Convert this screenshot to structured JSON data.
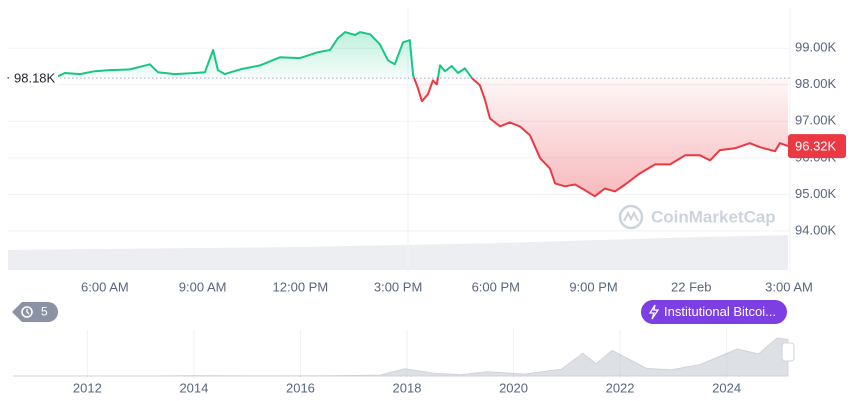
{
  "chart_data": [
    {
      "type": "line",
      "x": [
        4.56,
        4.77,
        5.23,
        5.69,
        6.15,
        6.77,
        7.38,
        7.63,
        8.15,
        8.76,
        9.07,
        9.32,
        9.47,
        9.68,
        10.15,
        10.76,
        11.37,
        11.99,
        12.54,
        12.91,
        13.15,
        13.37,
        13.68,
        13.83,
        14.14,
        14.44,
        14.69,
        14.9,
        15.15,
        15.36,
        15.46,
        15.61,
        15.73,
        15.92,
        16.07,
        16.19,
        16.29,
        16.44,
        16.65,
        16.84,
        17.05,
        17.27,
        17.51,
        17.67,
        17.82,
        18.13,
        18.43,
        18.74,
        19.05,
        19.36,
        19.66,
        19.82,
        20.12,
        20.43,
        20.74,
        21.04,
        21.35,
        21.66,
        21.97,
        22.43,
        22.89,
        23.35,
        23.81,
        24.27,
        24.58,
        24.88,
        25.34,
        25.8,
        26.11,
        26.57,
        26.72,
        26.97
      ],
      "values": [
        98.23,
        98.32,
        98.29,
        98.37,
        98.4,
        98.42,
        98.56,
        98.34,
        98.29,
        98.32,
        98.34,
        98.95,
        98.4,
        98.29,
        98.42,
        98.53,
        98.75,
        98.73,
        98.89,
        98.95,
        99.27,
        99.44,
        99.36,
        99.44,
        99.38,
        99.11,
        98.67,
        98.56,
        99.16,
        99.22,
        98.26,
        97.9,
        97.55,
        97.74,
        98.12,
        98.01,
        98.53,
        98.37,
        98.51,
        98.32,
        98.45,
        98.18,
        97.99,
        97.58,
        97.08,
        96.86,
        96.97,
        96.86,
        96.62,
        95.99,
        95.71,
        95.3,
        95.22,
        95.27,
        95.11,
        94.95,
        95.16,
        95.08,
        95.27,
        95.58,
        95.82,
        95.82,
        96.07,
        96.07,
        95.93,
        96.21,
        96.26,
        96.4,
        96.29,
        96.18,
        96.4,
        96.32
      ],
      "up_color": "#16c784",
      "down_color": "#ea3943",
      "baseline": {
        "value": 98.18,
        "label": "98.18K"
      },
      "current_price": {
        "value": 96.32,
        "label": "96.32K"
      },
      "xlim": [
        4.56,
        26.97
      ],
      "xticks": [
        {
          "value": 6,
          "label": "6:00 AM"
        },
        {
          "value": 9,
          "label": "9:00 AM"
        },
        {
          "value": 12,
          "label": "12:00 PM"
        },
        {
          "value": 15,
          "label": "3:00 PM"
        },
        {
          "value": 18,
          "label": "6:00 PM"
        },
        {
          "value": 21,
          "label": "9:00 PM"
        },
        {
          "value": 24,
          "label": "22 Feb"
        },
        {
          "value": 27,
          "label": "3:00 AM"
        }
      ],
      "ylim": [
        92.93,
        100.1
      ],
      "yticks": [
        {
          "value": 94,
          "label": "94.00K"
        },
        {
          "value": 95,
          "label": "95.00K"
        },
        {
          "value": 96,
          "label": "96.00K"
        },
        {
          "value": 97,
          "label": "97.00K"
        },
        {
          "value": 98,
          "label": "98.00K"
        },
        {
          "value": 99,
          "label": "99.00K"
        }
      ],
      "grid": true,
      "watermark": "CoinMarketCap"
    },
    {
      "type": "area",
      "x": [
        2010.6,
        2011.5,
        2012.5,
        2013.3,
        2013.9,
        2014.5,
        2015.5,
        2016.5,
        2017.5,
        2017.96,
        2018.5,
        2019.0,
        2019.5,
        2020.2,
        2020.9,
        2021.3,
        2021.55,
        2021.85,
        2022.5,
        2022.95,
        2023.5,
        2024.2,
        2024.6,
        2024.95,
        2025.15
      ],
      "values": [
        0,
        0.01,
        0.01,
        0.1,
        1,
        0.6,
        0.25,
        0.6,
        2.5,
        19,
        7,
        3.5,
        11,
        5,
        18,
        60,
        32,
        67,
        20,
        16,
        30,
        71,
        58,
        100,
        96
      ],
      "color": "#c8ccd3",
      "xlim": [
        2010.51,
        2025.19
      ],
      "xticks": [
        2012,
        2014,
        2016,
        2018,
        2020,
        2022,
        2024
      ]
    }
  ],
  "ui": {
    "history_badge": 5,
    "news_tag": "Institutional Bitcoi..."
  }
}
